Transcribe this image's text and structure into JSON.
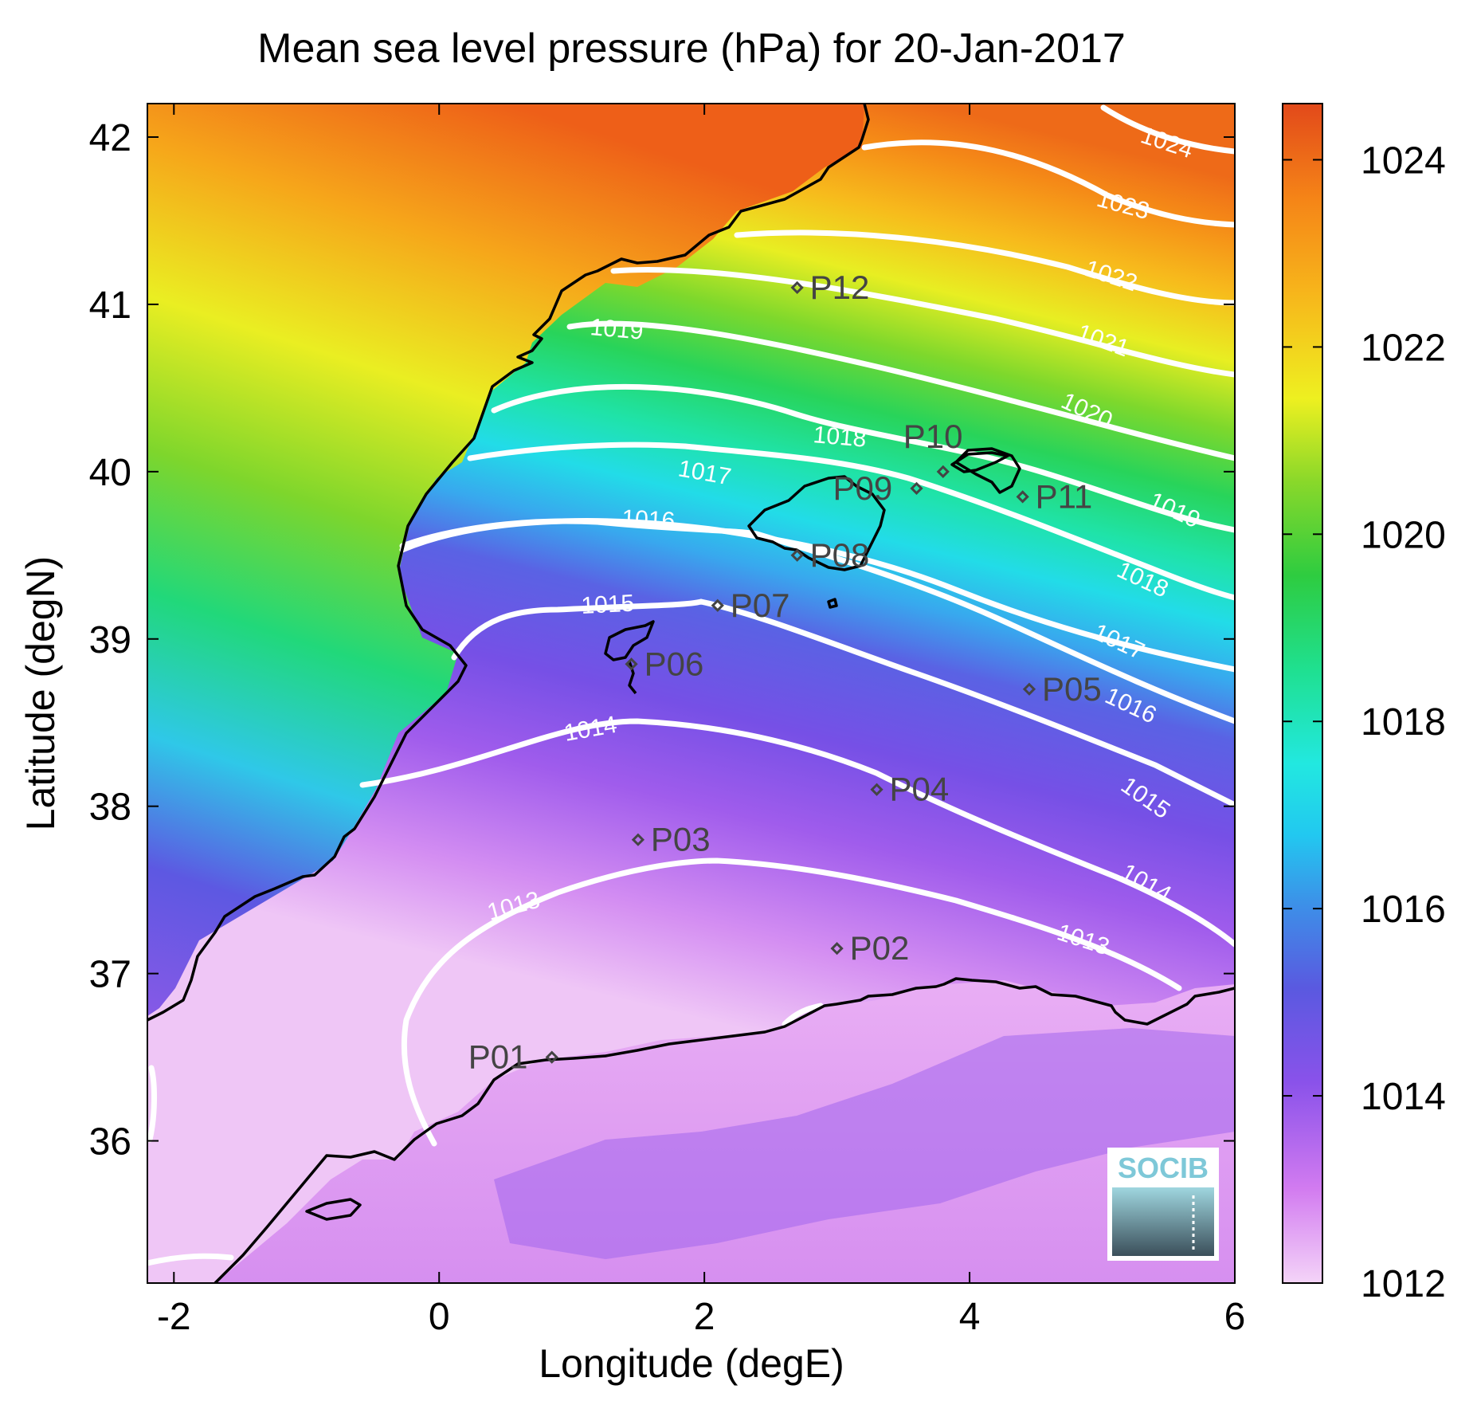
{
  "title": "Mean sea level pressure (hPa) for 20-Jan-2017",
  "xlabel": "Longitude (degE)",
  "ylabel": "Latitude (degN)",
  "x_ticks": [
    "-2",
    "0",
    "2",
    "4",
    "6"
  ],
  "y_ticks": [
    "36",
    "37",
    "38",
    "39",
    "40",
    "41",
    "42"
  ],
  "colorbar_ticks": [
    "1012",
    "1014",
    "1016",
    "1018",
    "1020",
    "1022",
    "1024"
  ],
  "colorbar_range": [
    1012,
    1024.6
  ],
  "colormap": [
    "#f2c8f7",
    "#d27bf0",
    "#8a52ea",
    "#4f63dd",
    "#2aaaf0",
    "#22e8e8",
    "#21dc8a",
    "#33cc33",
    "#9ad829",
    "#f1f020",
    "#f6b91a",
    "#f58417",
    "#e65318"
  ],
  "contour_color": "#ffffff",
  "coastline_color": "#000000",
  "station_color": "#444444",
  "logo": {
    "text": "SOCIB"
  },
  "contour_labels": [
    {
      "text": "1024"
    },
    {
      "text": "1023"
    },
    {
      "text": "1022"
    },
    {
      "text": "1021"
    },
    {
      "text": "1020"
    },
    {
      "text": "1019"
    },
    {
      "text": "1019"
    },
    {
      "text": "1018"
    },
    {
      "text": "1018"
    },
    {
      "text": "1017"
    },
    {
      "text": "1017"
    },
    {
      "text": "1016"
    },
    {
      "text": "1016"
    },
    {
      "text": "1015"
    },
    {
      "text": "1015"
    },
    {
      "text": "1014"
    },
    {
      "text": "1014"
    },
    {
      "text": "1013"
    },
    {
      "text": "1013"
    }
  ],
  "stations": [
    {
      "name": "P01",
      "lon": 0.85,
      "lat": 36.5
    },
    {
      "name": "P02",
      "lon": 3.0,
      "lat": 37.15
    },
    {
      "name": "P03",
      "lon": 1.5,
      "lat": 37.8
    },
    {
      "name": "P04",
      "lon": 3.3,
      "lat": 38.1
    },
    {
      "name": "P05",
      "lon": 4.45,
      "lat": 38.7
    },
    {
      "name": "P06",
      "lon": 1.45,
      "lat": 38.85
    },
    {
      "name": "P07",
      "lon": 2.1,
      "lat": 39.2
    },
    {
      "name": "P08",
      "lon": 2.7,
      "lat": 39.5
    },
    {
      "name": "P09",
      "lon": 3.6,
      "lat": 39.9
    },
    {
      "name": "P10",
      "lon": 3.8,
      "lat": 40.0
    },
    {
      "name": "P11",
      "lon": 4.4,
      "lat": 39.85
    },
    {
      "name": "P12",
      "lon": 2.7,
      "lat": 41.1
    }
  ]
}
